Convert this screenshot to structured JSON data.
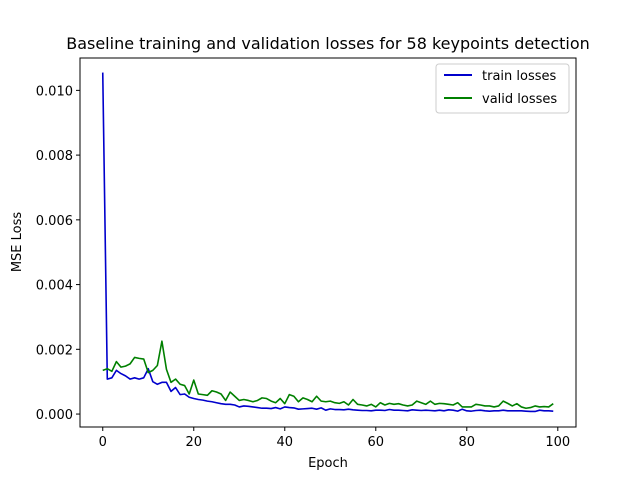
{
  "chart_data": {
    "type": "line",
    "title": "Baseline training and validation losses for 58 keypoints detection",
    "xlabel": "Epoch",
    "ylabel": "MSE Loss",
    "xlim": [
      -5,
      104
    ],
    "ylim": [
      -0.0004,
      0.011
    ],
    "x_ticks": [
      0,
      20,
      40,
      60,
      80,
      100
    ],
    "y_ticks": [
      0.0,
      0.002,
      0.004,
      0.006,
      0.008,
      0.01
    ],
    "x_tick_labels": [
      "0",
      "20",
      "40",
      "60",
      "80",
      "100"
    ],
    "y_tick_labels": [
      "0.000",
      "0.002",
      "0.004",
      "0.006",
      "0.008",
      "0.010"
    ],
    "legend_position": "top-right",
    "grid": false,
    "series": [
      {
        "name": "train losses",
        "color": "#0000cc",
        "x": [
          0,
          1,
          2,
          3,
          4,
          5,
          6,
          7,
          8,
          9,
          10,
          11,
          12,
          13,
          14,
          15,
          16,
          17,
          18,
          19,
          20,
          21,
          22,
          23,
          24,
          25,
          26,
          27,
          28,
          29,
          30,
          31,
          32,
          33,
          34,
          35,
          36,
          37,
          38,
          39,
          40,
          41,
          42,
          43,
          44,
          45,
          46,
          47,
          48,
          49,
          50,
          51,
          52,
          53,
          54,
          55,
          56,
          57,
          58,
          59,
          60,
          61,
          62,
          63,
          64,
          65,
          66,
          67,
          68,
          69,
          70,
          71,
          72,
          73,
          74,
          75,
          76,
          77,
          78,
          79,
          80,
          81,
          82,
          83,
          84,
          85,
          86,
          87,
          88,
          89,
          90,
          91,
          92,
          93,
          94,
          95,
          96,
          97,
          98,
          99
        ],
        "values": [
          0.01055,
          0.00108,
          0.00112,
          0.00135,
          0.00125,
          0.00118,
          0.00108,
          0.00112,
          0.00108,
          0.00112,
          0.0014,
          0.001,
          0.00092,
          0.00098,
          0.00098,
          0.0007,
          0.00082,
          0.0006,
          0.00062,
          0.00052,
          0.00048,
          0.00045,
          0.00043,
          0.0004,
          0.00038,
          0.00035,
          0.00032,
          0.0003,
          0.0003,
          0.00028,
          0.00022,
          0.00025,
          0.00024,
          0.00022,
          0.0002,
          0.00018,
          0.00018,
          0.00017,
          0.0002,
          0.00016,
          0.00022,
          0.0002,
          0.00019,
          0.00015,
          0.00016,
          0.00017,
          0.00018,
          0.00015,
          0.00019,
          0.00012,
          0.00016,
          0.00014,
          0.00014,
          0.00013,
          0.00015,
          0.00013,
          0.00012,
          0.00011,
          0.00011,
          0.0001,
          0.00012,
          0.00012,
          0.00011,
          0.00014,
          0.00012,
          0.00012,
          0.00011,
          0.0001,
          0.00013,
          0.00012,
          0.00011,
          0.00012,
          0.00011,
          0.0001,
          0.00012,
          0.0001,
          0.00013,
          0.00012,
          9e-05,
          0.00015,
          0.0001,
          9e-05,
          0.00011,
          0.00012,
          0.0001,
          9e-05,
          0.0001,
          0.0001,
          0.00012,
          0.0001,
          0.0001,
          0.0001,
          0.0001,
          9e-05,
          8e-05,
          8e-05,
          0.00012,
          0.0001,
          0.0001,
          9e-05
        ]
      },
      {
        "name": "valid losses",
        "color": "#008000",
        "x": [
          0,
          1,
          2,
          3,
          4,
          5,
          6,
          7,
          8,
          9,
          10,
          11,
          12,
          13,
          14,
          15,
          16,
          17,
          18,
          19,
          20,
          21,
          22,
          23,
          24,
          25,
          26,
          27,
          28,
          29,
          30,
          31,
          32,
          33,
          34,
          35,
          36,
          37,
          38,
          39,
          40,
          41,
          42,
          43,
          44,
          45,
          46,
          47,
          48,
          49,
          50,
          51,
          52,
          53,
          54,
          55,
          56,
          57,
          58,
          59,
          60,
          61,
          62,
          63,
          64,
          65,
          66,
          67,
          68,
          69,
          70,
          71,
          72,
          73,
          74,
          75,
          76,
          77,
          78,
          79,
          80,
          81,
          82,
          83,
          84,
          85,
          86,
          87,
          88,
          89,
          90,
          91,
          92,
          93,
          94,
          95,
          96,
          97,
          98,
          99
        ],
        "values": [
          0.00135,
          0.0014,
          0.00132,
          0.00162,
          0.00145,
          0.00148,
          0.00155,
          0.00175,
          0.00172,
          0.0017,
          0.00128,
          0.00135,
          0.0015,
          0.00225,
          0.00138,
          0.00098,
          0.00108,
          0.00092,
          0.00088,
          0.00062,
          0.00105,
          0.00062,
          0.0006,
          0.00058,
          0.00072,
          0.00068,
          0.00062,
          0.00042,
          0.00068,
          0.00055,
          0.00042,
          0.00045,
          0.00042,
          0.00038,
          0.00042,
          0.0005,
          0.00048,
          0.0004,
          0.00035,
          0.00048,
          0.00032,
          0.0006,
          0.00055,
          0.00038,
          0.0005,
          0.00045,
          0.00038,
          0.00055,
          0.0004,
          0.00038,
          0.0004,
          0.00035,
          0.00033,
          0.00038,
          0.00028,
          0.00045,
          0.0003,
          0.00028,
          0.00025,
          0.0003,
          0.00022,
          0.00035,
          0.00028,
          0.00033,
          0.0003,
          0.00032,
          0.00028,
          0.00025,
          0.00028,
          0.0004,
          0.00035,
          0.0003,
          0.0004,
          0.0003,
          0.00033,
          0.00032,
          0.0003,
          0.00028,
          0.00035,
          0.00022,
          0.00022,
          0.00022,
          0.0003,
          0.00028,
          0.00025,
          0.00025,
          0.00022,
          0.00025,
          0.0004,
          0.00033,
          0.00025,
          0.00032,
          0.00022,
          0.00018,
          0.0002,
          0.00025,
          0.00022,
          0.00023,
          0.00022,
          0.00032
        ]
      }
    ]
  }
}
